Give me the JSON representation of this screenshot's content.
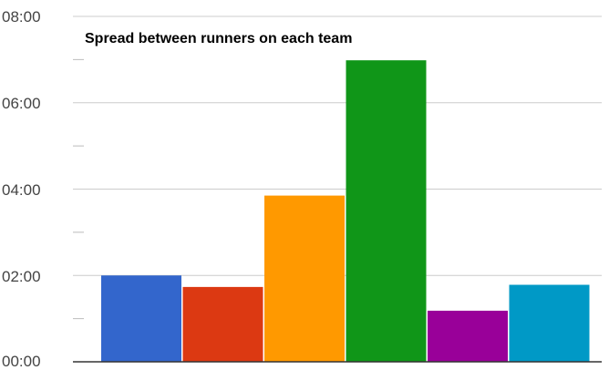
{
  "chart_data": {
    "type": "bar",
    "title": "Spread between runners on each team",
    "xlabel": "",
    "ylabel": "",
    "categories": [
      "",
      "",
      "",
      "",
      "",
      ""
    ],
    "values_seconds": [
      120,
      104,
      231,
      419,
      71,
      107
    ],
    "values": [
      "02:00",
      "01:44",
      "03:51",
      "06:59",
      "01:11",
      "01:47"
    ],
    "colors": [
      "#3366cc",
      "#dc3912",
      "#ff9900",
      "#109618",
      "#990099",
      "#0099c6"
    ],
    "ylim_seconds": [
      0,
      480
    ],
    "y_ticks": [
      "00:00",
      "02:00",
      "04:00",
      "06:00",
      "08:00"
    ],
    "grid": true,
    "legend": "none"
  }
}
